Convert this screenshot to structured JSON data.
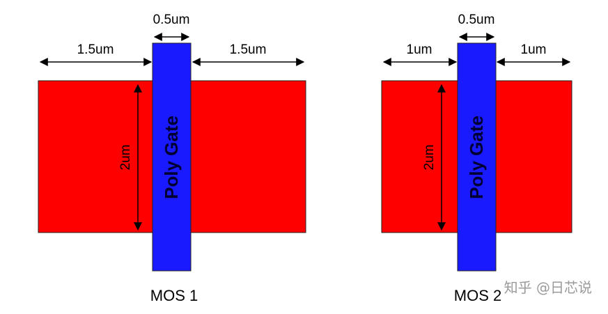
{
  "diagrams": [
    {
      "id": "mos1",
      "caption": "MOS 1",
      "gate_width_label": "0.5um",
      "left_extension_label": "1.5um",
      "right_extension_label": "1.5um",
      "height_label": "2um",
      "gate_text": "Poly Gate"
    },
    {
      "id": "mos2",
      "caption": "MOS 2",
      "gate_width_label": "0.5um",
      "left_extension_label": "1um",
      "right_extension_label": "1um",
      "height_label": "2um",
      "gate_text": "Poly Gate"
    }
  ],
  "colors": {
    "diffusion": "#ff0000",
    "poly_gate": "#1a1aff",
    "outline": "#222222"
  },
  "watermark": "知乎 @日芯说"
}
